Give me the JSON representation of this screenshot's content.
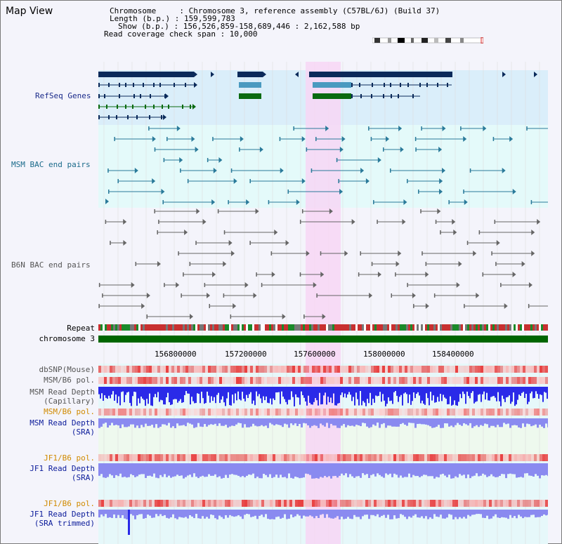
{
  "page": {
    "title": "Map View",
    "header": {
      "chromosome": "Chromosome     : Chromosome 3, reference assembly (C57BL/6J) (Build 37)",
      "length": "Length (b.p.) : 159,599,783",
      "show": "Show (b.p.) : 156,526,859-158,689,446 : 2,162,588 bp",
      "coverage": "Read coverage check span : 10,000"
    }
  },
  "tracks": {
    "refseq": "RefSeq Genes",
    "msm_bac": "MSM BAC end pairs",
    "b6n_bac": "B6N BAC end pairs",
    "repeat": "Repeat",
    "chromosome": "chromosome 3",
    "dbsnp": "dbSNP(Mouse)",
    "msm_b6_pol": "MSM/B6 pol.",
    "msm_depth_cap_1": "MSM Read Depth",
    "msm_depth_cap_2": "(Capillary)",
    "msm_b6_pol_2": "MSM/B6 pol.",
    "msm_depth_sra_1": "MSM Read Depth",
    "msm_depth_sra_2": "(SRA)",
    "jf1_b6_pol": "JF1/B6 pol.",
    "jf1_depth_sra_1": "JF1 Read Depth",
    "jf1_depth_sra_2": "(SRA)",
    "jf1_b6_pol_2": "JF1/B6 pol.",
    "jf1_depth_trim_1": "JF1 Read Depth",
    "jf1_depth_trim_2": "(SRA trimmed)"
  },
  "axis": {
    "ticks": [
      "156800000",
      "157200000",
      "157600000",
      "158000000",
      "158400000"
    ]
  },
  "colors": {
    "refseq_bg": "#daeefa",
    "bac_bg": "#e4fafa",
    "highlight": "#f7d6f4",
    "gene_navy": "#0b2a5a",
    "gene_teal": "#4a9ac0",
    "gene_green": "#0a6a10",
    "chrom_green": "#006600",
    "depth_blue": "#2a2ae8",
    "depth_light": "#8a8af0",
    "pol_red": "#e84040",
    "orange_label": "#d08a00",
    "navy_label": "#0a1a9a"
  }
}
